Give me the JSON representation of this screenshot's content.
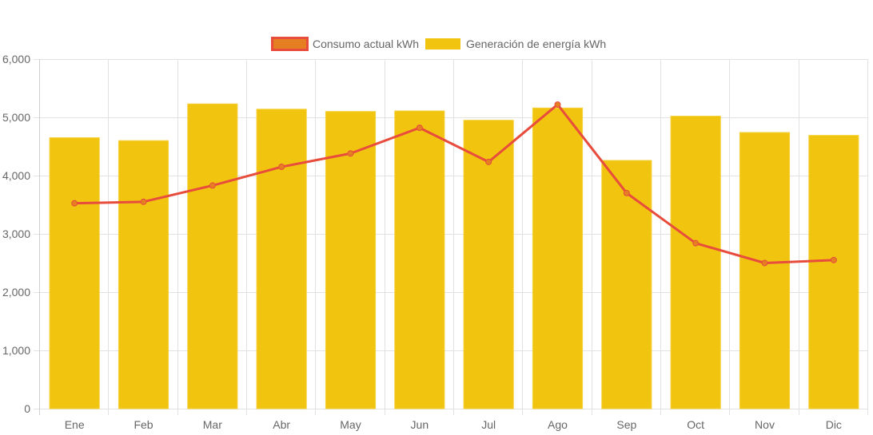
{
  "chart_data": {
    "type": "bar",
    "title": "",
    "xlabel": "",
    "ylabel": "",
    "categories": [
      "Ene",
      "Feb",
      "Mar",
      "Abr",
      "May",
      "Jun",
      "Jul",
      "Ago",
      "Sep",
      "Oct",
      "Nov",
      "Dic"
    ],
    "ylim": [
      0,
      6000
    ],
    "yticks": [
      0,
      1000,
      2000,
      3000,
      4000,
      5000,
      6000
    ],
    "ytick_labels": [
      "0",
      "1,000",
      "2,000",
      "3,000",
      "4,000",
      "5,000",
      "6,000"
    ],
    "grid": true,
    "legend_position": "top-center",
    "series": [
      {
        "name": "Consumo actual kWh",
        "type": "line",
        "color": "#E74C3C",
        "point_color": "#E67E22",
        "values": [
          3525,
          3550,
          3830,
          4150,
          4380,
          4820,
          4235,
          5220,
          3700,
          2840,
          2500,
          2550
        ]
      },
      {
        "name": "Generación de energía kWh",
        "type": "bar",
        "color": "#F1C40F",
        "values": [
          4650,
          4600,
          5230,
          5140,
          5100,
          5110,
          4950,
          5160,
          4260,
          5020,
          4740,
          4690
        ]
      }
    ]
  }
}
